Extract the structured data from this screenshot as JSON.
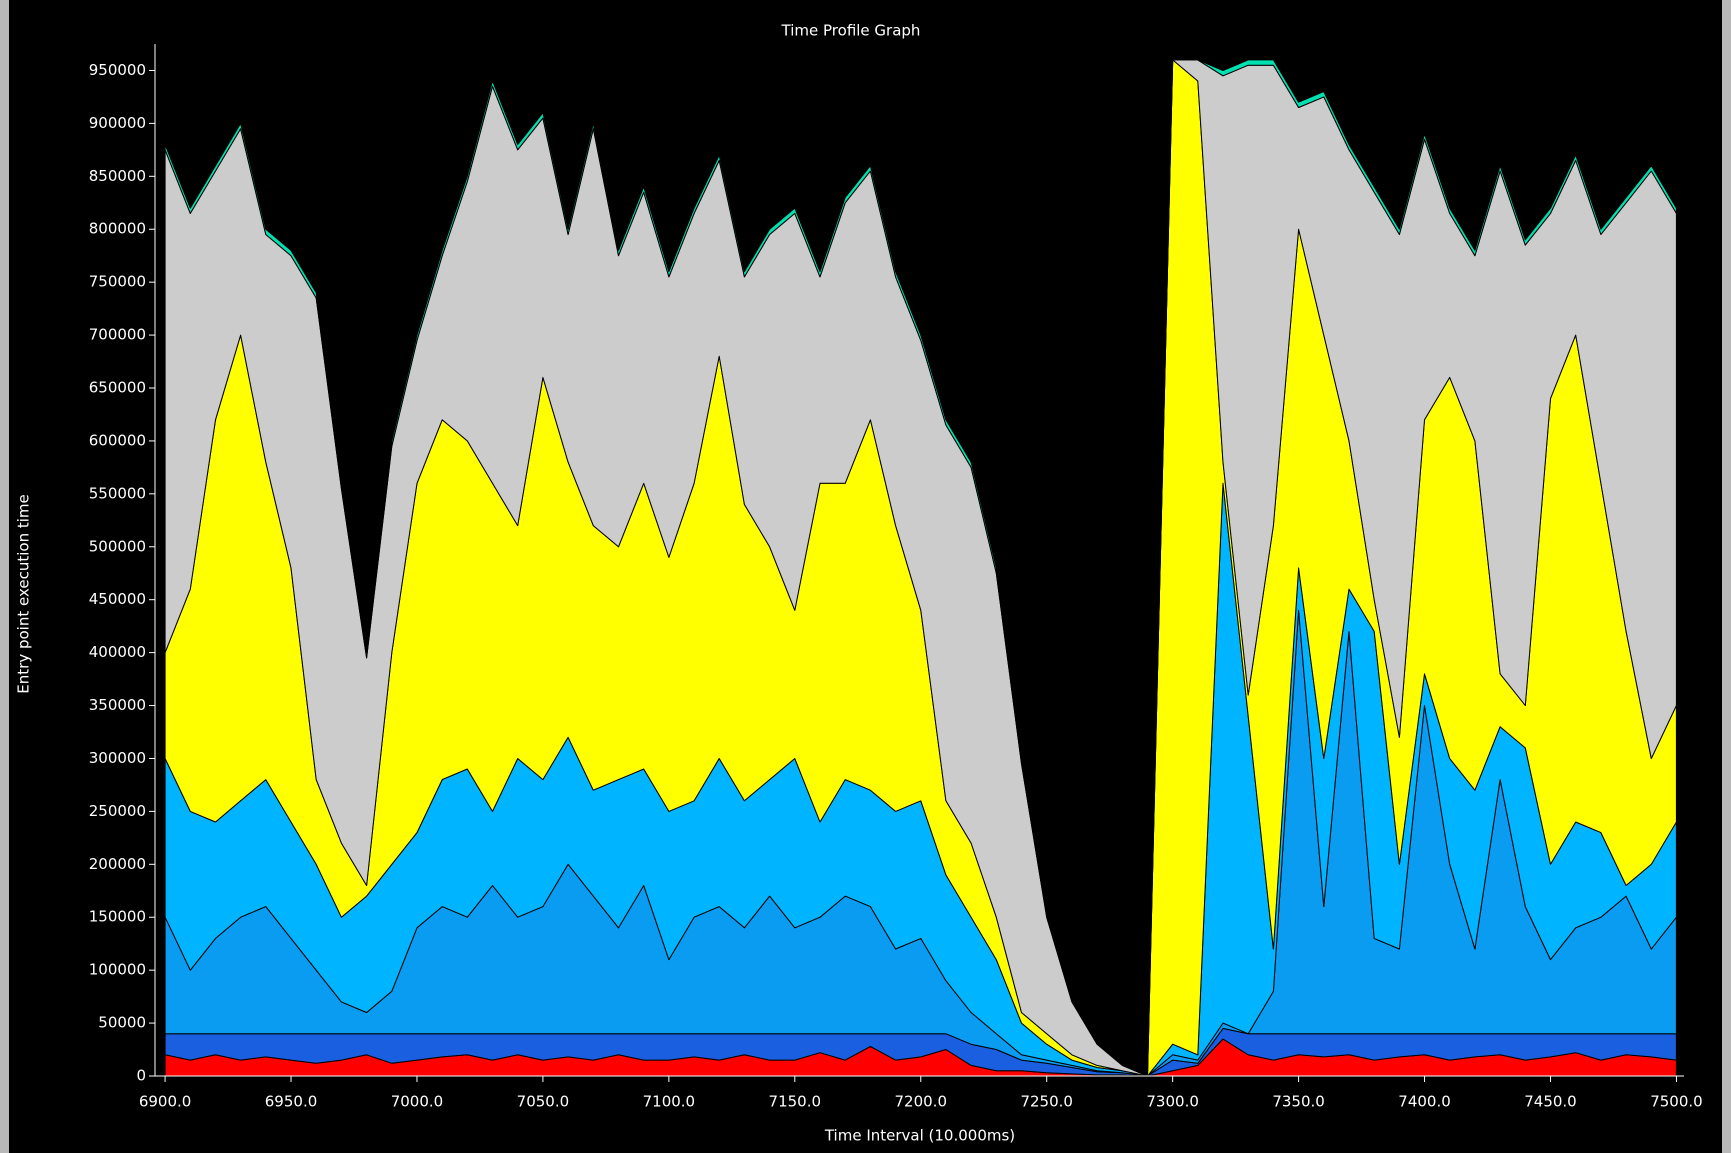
{
  "chart_data": {
    "type": "stacked_area",
    "title": "Time Profile Graph",
    "x_label": "Time Interval (10.000ms)",
    "y_label": "Entry point execution time",
    "xlim": [
      6896,
      7503
    ],
    "ylim": [
      0,
      975000
    ],
    "xticks": [
      {
        "value": 6900,
        "label": "6900.0"
      },
      {
        "value": 6950,
        "label": "6950.0"
      },
      {
        "value": 7000,
        "label": "7000.0"
      },
      {
        "value": 7050,
        "label": "7050.0"
      },
      {
        "value": 7100,
        "label": "7100.0"
      },
      {
        "value": 7150,
        "label": "7150.0"
      },
      {
        "value": 7200,
        "label": "7200.0"
      },
      {
        "value": 7250,
        "label": "7250.0"
      },
      {
        "value": 7300,
        "label": "7300.0"
      },
      {
        "value": 7350,
        "label": "7350.0"
      },
      {
        "value": 7400,
        "label": "7400.0"
      },
      {
        "value": 7450,
        "label": "7450.0"
      },
      {
        "value": 7500,
        "label": "7500.0"
      }
    ],
    "yticks": [
      0,
      50000,
      100000,
      150000,
      200000,
      250000,
      300000,
      350000,
      400000,
      450000,
      500000,
      550000,
      600000,
      650000,
      700000,
      750000,
      800000,
      850000,
      900000,
      950000
    ],
    "grid": false,
    "x": [
      6900,
      6910,
      6920,
      6930,
      6940,
      6950,
      6960,
      6970,
      6980,
      6990,
      7000,
      7010,
      7020,
      7030,
      7040,
      7050,
      7060,
      7070,
      7080,
      7090,
      7100,
      7110,
      7120,
      7130,
      7140,
      7150,
      7160,
      7170,
      7180,
      7190,
      7200,
      7210,
      7220,
      7230,
      7240,
      7250,
      7260,
      7270,
      7280,
      7290,
      7300,
      7310,
      7320,
      7330,
      7340,
      7350,
      7360,
      7370,
      7380,
      7390,
      7400,
      7410,
      7420,
      7430,
      7440,
      7450,
      7460,
      7470,
      7480,
      7490,
      7500
    ],
    "series": [
      {
        "color": "#ff0000",
        "values": [
          20000,
          15000,
          20000,
          15000,
          18000,
          15000,
          12000,
          15000,
          20000,
          12000,
          15000,
          18000,
          20000,
          15000,
          20000,
          15000,
          18000,
          15000,
          20000,
          15000,
          15000,
          18000,
          15000,
          20000,
          15000,
          15000,
          22000,
          15000,
          28000,
          15000,
          18000,
          25000,
          10000,
          5000,
          5000,
          3000,
          2000,
          1000,
          1000,
          0,
          5000,
          10000,
          35000,
          20000,
          15000,
          20000,
          18000,
          20000,
          15000,
          18000,
          20000,
          15000,
          18000,
          20000,
          15000,
          18000,
          22000,
          15000,
          20000,
          18000,
          15000
        ]
      },
      {
        "color": "#1a5fe0",
        "values": [
          20000,
          25000,
          20000,
          25000,
          22000,
          25000,
          28000,
          25000,
          20000,
          28000,
          25000,
          22000,
          20000,
          25000,
          20000,
          25000,
          22000,
          25000,
          20000,
          25000,
          25000,
          22000,
          25000,
          20000,
          25000,
          25000,
          18000,
          25000,
          12000,
          25000,
          22000,
          15000,
          20000,
          20000,
          10000,
          9000,
          6000,
          3000,
          2000,
          0,
          10000,
          2000,
          10000,
          20000,
          25000,
          20000,
          22000,
          20000,
          25000,
          22000,
          20000,
          25000,
          22000,
          20000,
          25000,
          22000,
          18000,
          25000,
          20000,
          22000,
          25000
        ]
      },
      {
        "color": "#0a9cf0",
        "values": [
          110000,
          60000,
          90000,
          110000,
          120000,
          90000,
          60000,
          30000,
          20000,
          40000,
          100000,
          120000,
          110000,
          140000,
          110000,
          120000,
          160000,
          130000,
          100000,
          140000,
          70000,
          110000,
          120000,
          100000,
          130000,
          100000,
          110000,
          130000,
          120000,
          80000,
          90000,
          50000,
          30000,
          15000,
          5000,
          3000,
          2000,
          1000,
          0,
          0,
          5000,
          3000,
          5000,
          0,
          40000,
          400000,
          120000,
          380000,
          90000,
          80000,
          310000,
          160000,
          80000,
          240000,
          120000,
          70000,
          100000,
          110000,
          130000,
          80000,
          110000
        ]
      },
      {
        "color": "#00b4ff",
        "values": [
          150000,
          150000,
          110000,
          110000,
          120000,
          110000,
          100000,
          80000,
          110000,
          120000,
          90000,
          120000,
          140000,
          70000,
          150000,
          120000,
          120000,
          100000,
          140000,
          110000,
          140000,
          110000,
          140000,
          120000,
          110000,
          160000,
          90000,
          110000,
          110000,
          130000,
          130000,
          100000,
          90000,
          70000,
          30000,
          15000,
          5000,
          3000,
          2000,
          0,
          10000,
          5000,
          510000,
          300000,
          40000,
          40000,
          140000,
          40000,
          290000,
          80000,
          30000,
          100000,
          150000,
          50000,
          150000,
          90000,
          100000,
          80000,
          10000,
          80000,
          90000
        ]
      },
      {
        "color": "#ffff00",
        "values": [
          100000,
          210000,
          380000,
          440000,
          300000,
          240000,
          80000,
          70000,
          10000,
          200000,
          330000,
          340000,
          310000,
          310000,
          220000,
          380000,
          260000,
          250000,
          220000,
          270000,
          240000,
          300000,
          380000,
          280000,
          220000,
          140000,
          320000,
          280000,
          350000,
          270000,
          180000,
          70000,
          70000,
          40000,
          10000,
          10000,
          5000,
          2000,
          0,
          0,
          930000,
          920000,
          20000,
          20000,
          400000,
          320000,
          400000,
          140000,
          30000,
          120000,
          240000,
          360000,
          330000,
          50000,
          40000,
          440000,
          460000,
          330000,
          240000,
          100000,
          110000
        ]
      },
      {
        "color": "#cccccc",
        "values": [
          475000,
          355000,
          235000,
          195000,
          215000,
          295000,
          455000,
          335000,
          215000,
          195000,
          135000,
          155000,
          245000,
          375000,
          355000,
          245000,
          215000,
          375000,
          275000,
          275000,
          265000,
          255000,
          185000,
          215000,
          295000,
          375000,
          195000,
          265000,
          235000,
          235000,
          255000,
          355000,
          355000,
          325000,
          235000,
          110000,
          50000,
          20000,
          5000,
          0,
          0,
          20000,
          365000,
          595000,
          435000,
          115000,
          225000,
          275000,
          385000,
          475000,
          265000,
          155000,
          175000,
          475000,
          435000,
          175000,
          165000,
          235000,
          405000,
          555000,
          465000
        ]
      },
      {
        "color": "#00e0b0",
        "values": [
          5000,
          5000,
          5000,
          5000,
          5000,
          5000,
          5000,
          5000,
          5000,
          5000,
          5000,
          5000,
          5000,
          5000,
          5000,
          5000,
          5000,
          5000,
          5000,
          5000,
          5000,
          5000,
          5000,
          5000,
          5000,
          5000,
          5000,
          5000,
          5000,
          5000,
          5000,
          5000,
          5000,
          5000,
          5000,
          0,
          0,
          0,
          0,
          0,
          0,
          0,
          5000,
          5000,
          5000,
          5000,
          5000,
          5000,
          5000,
          5000,
          5000,
          5000,
          5000,
          5000,
          5000,
          5000,
          5000,
          5000,
          5000,
          5000,
          5000
        ]
      }
    ]
  }
}
